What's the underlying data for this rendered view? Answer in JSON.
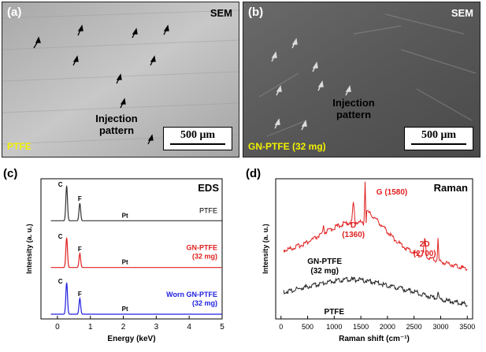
{
  "panels": {
    "a": {
      "label": "(a)",
      "tag": "SEM",
      "material": "PTFE",
      "scale": "500 μm",
      "annotation_line1": "Injection",
      "annotation_line2": "pattern"
    },
    "b": {
      "label": "(b)",
      "tag": "SEM",
      "material": "GN-PTFE (32 mg)",
      "scale": "500 μm",
      "annotation_line1": "Injection",
      "annotation_line2": "pattern"
    },
    "c": {
      "label": "(c)"
    },
    "d": {
      "label": "(d)"
    }
  },
  "chart_data": [
    {
      "type": "line",
      "panel": "c",
      "title": "EDS",
      "xlabel": "Energy (keV)",
      "ylabel": "Intensity (a. u.)",
      "xlim": [
        -0.5,
        5
      ],
      "xticks": [
        0,
        1,
        2,
        3,
        4,
        5
      ],
      "series": [
        {
          "name": "PTFE",
          "color": "#333333",
          "peaks": [
            {
              "x": 0.28,
              "h": 1.0
            },
            {
              "x": 0.68,
              "h": 0.5
            }
          ],
          "peak_labels": [
            {
              "text": "C",
              "x": 0.28
            },
            {
              "text": "F",
              "x": 0.68
            },
            {
              "text": "Pt",
              "x": 2.05
            }
          ],
          "legend": [
            "PTFE"
          ]
        },
        {
          "name": "GN-PTFE (32 mg)",
          "color": "#e02020",
          "peaks": [
            {
              "x": 0.28,
              "h": 0.85
            },
            {
              "x": 0.68,
              "h": 0.4
            }
          ],
          "peak_labels": [
            {
              "text": "C",
              "x": 0.28
            },
            {
              "text": "F",
              "x": 0.68
            },
            {
              "text": "Pt",
              "x": 2.05
            }
          ],
          "legend": [
            "GN-PTFE",
            "(32 mg)"
          ]
        },
        {
          "name": "Worn GN-PTFE (32 mg)",
          "color": "#2020e0",
          "peaks": [
            {
              "x": 0.28,
              "h": 0.9
            },
            {
              "x": 0.68,
              "h": 0.45
            }
          ],
          "peak_labels": [
            {
              "text": "C",
              "x": 0.28
            },
            {
              "text": "F",
              "x": 0.68
            },
            {
              "text": "Pt",
              "x": 2.05
            }
          ],
          "legend": [
            "Worn GN-PTFE",
            "(32 mg)"
          ]
        }
      ]
    },
    {
      "type": "line",
      "panel": "d",
      "title": "Raman",
      "xlabel": "Raman shift (cm⁻¹)",
      "ylabel": "Intensity (a. u.)",
      "xlim": [
        -100,
        3600
      ],
      "xticks": [
        0,
        500,
        1000,
        1500,
        2000,
        2500,
        3000,
        3500
      ],
      "series": [
        {
          "name": "GN-PTFE (32 mg)",
          "color": "#e02020",
          "label_lines": [
            "GN-PTFE",
            "(32 mg)"
          ]
        },
        {
          "name": "PTFE",
          "color": "#222222",
          "label_lines": [
            "PTFE"
          ]
        }
      ],
      "annotations": [
        {
          "lines": [
            "D",
            "(1360)"
          ],
          "x": 1360
        },
        {
          "lines": [
            "G (1580)"
          ],
          "x": 1580
        },
        {
          "lines": [
            "2D",
            "(2700)"
          ],
          "x": 2700
        }
      ]
    }
  ]
}
